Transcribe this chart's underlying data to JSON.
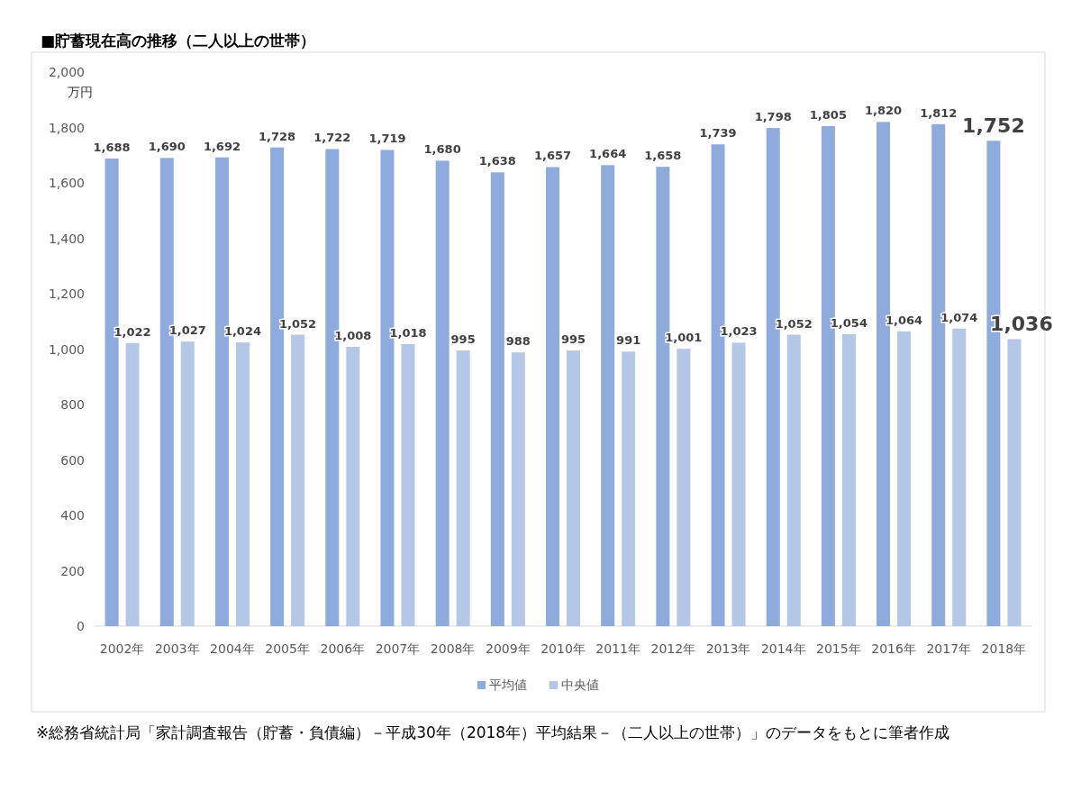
{
  "chart_data": {
    "type": "bar",
    "title": "■貯蓄現在高の推移（二人以上の世帯）",
    "ylabel": "万円",
    "categories": [
      "2002年",
      "2003年",
      "2004年",
      "2005年",
      "2006年",
      "2007年",
      "2008年",
      "2009年",
      "2010年",
      "2011年",
      "2012年",
      "2013年",
      "2014年",
      "2015年",
      "2016年",
      "2017年",
      "2018年"
    ],
    "series": [
      {
        "name": "平均値",
        "color": "#8faadc",
        "values": [
          1688,
          1690,
          1692,
          1728,
          1722,
          1719,
          1680,
          1638,
          1657,
          1664,
          1658,
          1739,
          1798,
          1805,
          1820,
          1812,
          1752
        ],
        "value_labels": [
          "1,688",
          "1,690",
          "1,692",
          "1,728",
          "1,722",
          "1,719",
          "1,680",
          "1,638",
          "1,657",
          "1,664",
          "1,658",
          "1,739",
          "1,798",
          "1,805",
          "1,820",
          "1,812",
          "1,752"
        ]
      },
      {
        "name": "中央値",
        "color": "#b4c7e7",
        "values": [
          1022,
          1027,
          1024,
          1052,
          1008,
          1018,
          995,
          988,
          995,
          991,
          1001,
          1023,
          1052,
          1054,
          1064,
          1074,
          1036
        ],
        "value_labels": [
          "1,022",
          "1,027",
          "1,024",
          "1,052",
          "1,008",
          "1,018",
          "995",
          "988",
          "995",
          "991",
          "1,001",
          "1,023",
          "1,052",
          "1,054",
          "1,064",
          "1,074",
          "1,036"
        ]
      }
    ],
    "ylim": [
      0,
      2000
    ],
    "yticks": [
      {
        "value": 0,
        "label": "0"
      },
      {
        "value": 200,
        "label": "200"
      },
      {
        "value": 400,
        "label": "400"
      },
      {
        "value": 600,
        "label": "600"
      },
      {
        "value": 800,
        "label": "800"
      },
      {
        "value": 1000,
        "label": "1,000"
      },
      {
        "value": 1200,
        "label": "1,200"
      },
      {
        "value": 1400,
        "label": "1,400"
      },
      {
        "value": 1600,
        "label": "1,600"
      },
      {
        "value": 1800,
        "label": "1,800"
      },
      {
        "value": 2000,
        "label": "2,000"
      }
    ],
    "grid": false,
    "legend": "bottom",
    "annotations": [
      "※総務省統計局「家計調査報告（貯蓄・負債編）－平成30年（2018年）平均結果－（二人以上の世帯）」のデータをもとに筆者作成"
    ]
  }
}
